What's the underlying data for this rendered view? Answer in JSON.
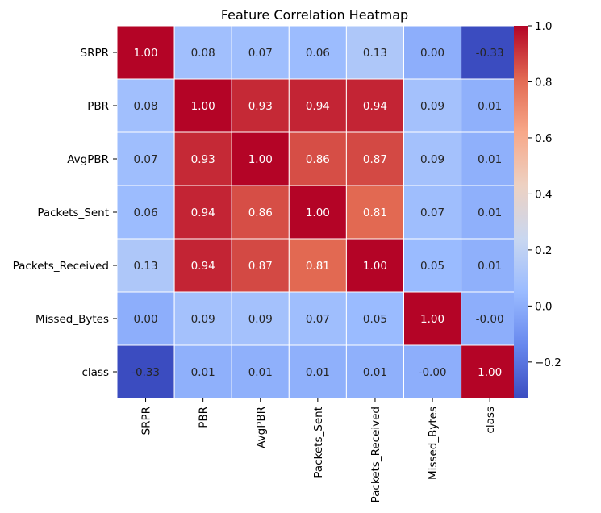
{
  "chart_data": {
    "type": "heatmap",
    "title": "Feature Correlation Heatmap",
    "row_labels": [
      "SRPR",
      "PBR",
      "AvgPBR",
      "Packets_Sent",
      "Packets_Received",
      "Missed_Bytes",
      "class"
    ],
    "col_labels": [
      "SRPR",
      "PBR",
      "AvgPBR",
      "Packets_Sent",
      "Packets_Received",
      "Missed_Bytes",
      "class"
    ],
    "values": [
      [
        1.0,
        0.08,
        0.07,
        0.06,
        0.13,
        0.0,
        -0.33
      ],
      [
        0.08,
        1.0,
        0.93,
        0.94,
        0.94,
        0.09,
        0.01
      ],
      [
        0.07,
        0.93,
        1.0,
        0.86,
        0.87,
        0.09,
        0.01
      ],
      [
        0.06,
        0.94,
        0.86,
        1.0,
        0.81,
        0.07,
        0.01
      ],
      [
        0.13,
        0.94,
        0.87,
        0.81,
        1.0,
        0.05,
        0.01
      ],
      [
        0.0,
        0.09,
        0.09,
        0.07,
        0.05,
        1.0,
        -0.0
      ],
      [
        -0.33,
        0.01,
        0.01,
        0.01,
        0.01,
        -0.0,
        1.0
      ]
    ],
    "annotations": [
      [
        "1.00",
        "0.08",
        "0.07",
        "0.06",
        "0.13",
        "0.00",
        "-0.33"
      ],
      [
        "0.08",
        "1.00",
        "0.93",
        "0.94",
        "0.94",
        "0.09",
        "0.01"
      ],
      [
        "0.07",
        "0.93",
        "1.00",
        "0.86",
        "0.87",
        "0.09",
        "0.01"
      ],
      [
        "0.06",
        "0.94",
        "0.86",
        "1.00",
        "0.81",
        "0.07",
        "0.01"
      ],
      [
        "0.13",
        "0.94",
        "0.87",
        "0.81",
        "1.00",
        "0.05",
        "0.01"
      ],
      [
        "0.00",
        "0.09",
        "0.09",
        "0.07",
        "0.05",
        "1.00",
        "-0.00"
      ],
      [
        "-0.33",
        "0.01",
        "0.01",
        "0.01",
        "0.01",
        "-0.00",
        "1.00"
      ]
    ],
    "colormap": "coolwarm",
    "vmin": -0.33,
    "vmax": 1.0,
    "colorbar_ticks": [
      1.0,
      0.8,
      0.6,
      0.4,
      0.2,
      0.0,
      -0.2
    ],
    "colorbar_tick_labels": [
      "1.0",
      "0.8",
      "0.6",
      "0.4",
      "0.2",
      "0.0",
      "−0.2"
    ],
    "colorbar_colors": [
      "#3b4cc0",
      "#6788ee",
      "#9abbff",
      "#c9d7f0",
      "#edd1c2",
      "#f7a889",
      "#e26952",
      "#b40426"
    ]
  }
}
